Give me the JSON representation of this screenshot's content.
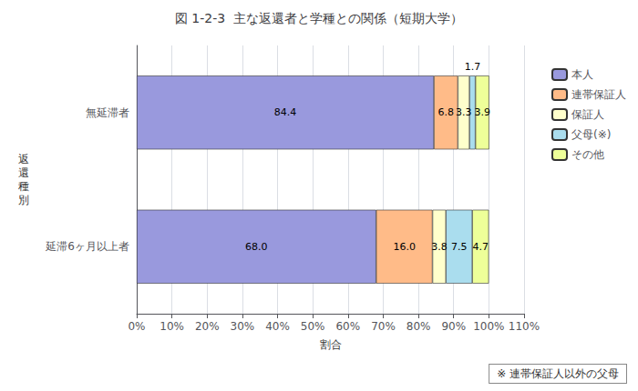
{
  "chart_data": {
    "type": "bar",
    "orientation": "horizontal",
    "stacked": true,
    "title": "図 1-2-3  主な返還者と学種との関係（短期大学）",
    "xlabel": "割合",
    "ylabel": "返\n還\n種\n別",
    "categories": [
      "無延滞者",
      "延滞6ヶ月以上者"
    ],
    "series": [
      {
        "name": "本人",
        "color": "#9999dd",
        "values": [
          84.4,
          68.0
        ],
        "value_labels": [
          "84.4",
          "68.0"
        ]
      },
      {
        "name": "連帯保証人",
        "color": "#ffbb88",
        "values": [
          6.8,
          16.0
        ],
        "value_labels": [
          "6.8",
          "16.0"
        ]
      },
      {
        "name": "保証人",
        "color": "#ffffcc",
        "values": [
          3.3,
          3.8
        ],
        "value_labels": [
          "3.3",
          "3.8"
        ]
      },
      {
        "name": "父母(※)",
        "color": "#aaddee",
        "values": [
          1.7,
          7.5
        ],
        "value_labels": [
          "1.7",
          "7.5"
        ]
      },
      {
        "name": "その他",
        "color": "#eeff99",
        "values": [
          3.9,
          4.7
        ],
        "value_labels": [
          "3.9",
          "4.7"
        ]
      }
    ],
    "xlim": [
      0,
      110
    ],
    "xticks": [
      {
        "value": 0,
        "label": "0%"
      },
      {
        "value": 10,
        "label": "10%"
      },
      {
        "value": 20,
        "label": "20%"
      },
      {
        "value": 30,
        "label": "30%"
      },
      {
        "value": 40,
        "label": "40%"
      },
      {
        "value": 50,
        "label": "50%"
      },
      {
        "value": 60,
        "label": "60%"
      },
      {
        "value": 70,
        "label": "70%"
      },
      {
        "value": 80,
        "label": "80%"
      },
      {
        "value": 90,
        "label": "90%"
      },
      {
        "value": 100,
        "label": "100%"
      },
      {
        "value": 110,
        "label": "110%"
      }
    ],
    "grid": true,
    "legend": "right",
    "data_labels": true,
    "annotations": [
      "※ 連帯保証人以外の父母"
    ]
  }
}
